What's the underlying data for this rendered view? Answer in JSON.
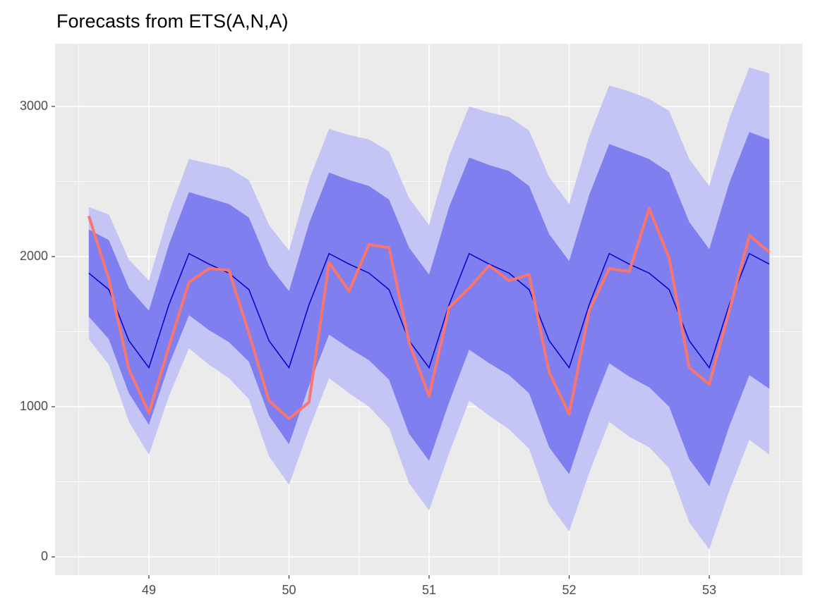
{
  "chart_data": {
    "type": "forecast",
    "title": "Forecasts from ETS(A,N,A)",
    "x": [
      48.571,
      48.714,
      48.857,
      49,
      49.143,
      49.286,
      49.429,
      49.571,
      49.714,
      49.857,
      50,
      50.143,
      50.286,
      50.429,
      50.571,
      50.714,
      50.857,
      51,
      51.143,
      51.286,
      51.429,
      51.571,
      51.714,
      51.857,
      52,
      52.143,
      52.286,
      52.429,
      52.571,
      52.714,
      52.857,
      53,
      53.143,
      53.286,
      53.429
    ],
    "interval_95": {
      "color": "#c4c4f5",
      "lower": [
        1450,
        1280,
        900,
        680,
        1070,
        1390,
        1280,
        1190,
        1050,
        670,
        480,
        850,
        1190,
        1090,
        1000,
        860,
        490,
        310,
        690,
        1040,
        940,
        850,
        720,
        350,
        170,
        560,
        900,
        800,
        730,
        590,
        230,
        50,
        440,
        780,
        680
      ],
      "upper": [
        2330,
        2280,
        1980,
        1840,
        2290,
        2650,
        2620,
        2590,
        2510,
        2210,
        2040,
        2510,
        2850,
        2810,
        2780,
        2700,
        2390,
        2210,
        2670,
        3000,
        2960,
        2930,
        2840,
        2530,
        2350,
        2800,
        3140,
        3100,
        3050,
        2970,
        2650,
        2470,
        2920,
        3260,
        3220
      ]
    },
    "interval_80": {
      "color": "#7f7fef",
      "lower": [
        1600,
        1450,
        1090,
        880,
        1280,
        1610,
        1510,
        1430,
        1300,
        940,
        750,
        1140,
        1480,
        1390,
        1310,
        1180,
        820,
        640,
        1030,
        1380,
        1290,
        1210,
        1090,
        730,
        550,
        950,
        1290,
        1200,
        1130,
        1000,
        650,
        470,
        870,
        1210,
        1120
      ],
      "upper": [
        2180,
        2110,
        1790,
        1640,
        2080,
        2430,
        2390,
        2350,
        2260,
        1940,
        1770,
        2220,
        2560,
        2510,
        2470,
        2380,
        2060,
        1880,
        2330,
        2660,
        2610,
        2570,
        2470,
        2150,
        1970,
        2410,
        2750,
        2700,
        2650,
        2560,
        2230,
        2050,
        2490,
        2830,
        2780
      ]
    },
    "forecast": {
      "color": "#0000cc",
      "values": [
        1890,
        1780,
        1440,
        1260,
        1680,
        2020,
        1950,
        1890,
        1780,
        1440,
        1260,
        1680,
        2020,
        1950,
        1890,
        1780,
        1440,
        1260,
        1680,
        2020,
        1950,
        1890,
        1780,
        1440,
        1260,
        1680,
        2020,
        1950,
        1890,
        1780,
        1440,
        1260,
        1680,
        2020,
        1950
      ]
    },
    "actual": {
      "color": "#f8766d",
      "values": [
        2270,
        1850,
        1250,
        960,
        1400,
        1830,
        1920,
        1910,
        1490,
        1040,
        920,
        1030,
        1960,
        1770,
        2080,
        2060,
        1430,
        1070,
        1660,
        1790,
        1940,
        1840,
        1880,
        1230,
        950,
        1640,
        1920,
        1900,
        2320,
        1990,
        1260,
        1150,
        1640,
        2140,
        2030
      ]
    },
    "xlim": [
      48.33,
      53.665
    ],
    "ylim": [
      -122,
      3418
    ],
    "xticks": [
      49,
      50,
      51,
      52,
      53
    ],
    "yticks": [
      0,
      1000,
      2000,
      3000
    ],
    "x_minor_ticks": [
      48.5,
      49.5,
      50.5,
      51.5,
      52.5,
      53.5
    ],
    "y_minor_ticks": [
      500,
      1500,
      2500
    ],
    "grid": true,
    "panel_color": "#ebebeb"
  }
}
